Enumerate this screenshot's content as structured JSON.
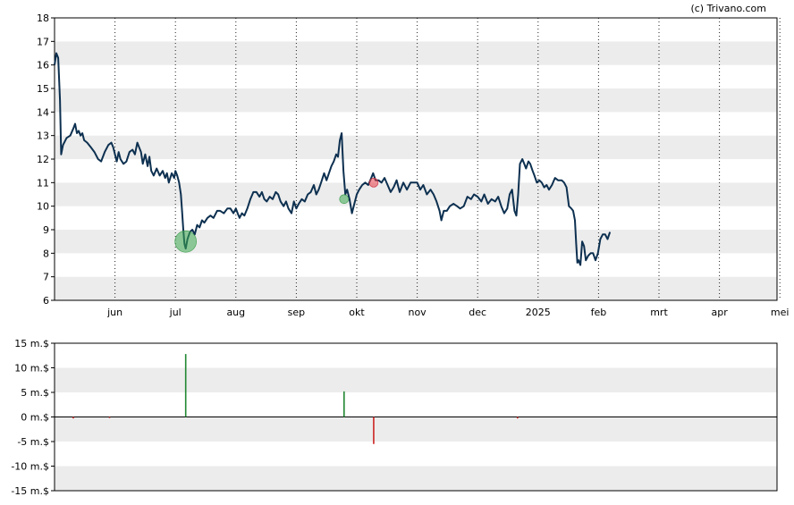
{
  "credit": "(c) Trivano.com",
  "chart_data": [
    {
      "type": "line",
      "title": "",
      "xlabel": "",
      "ylabel": "",
      "ylim": [
        6,
        18
      ],
      "y_ticks": [
        "6",
        "7",
        "8",
        "9",
        "10",
        "11",
        "12",
        "13",
        "14",
        "15",
        "16",
        "17",
        "18"
      ],
      "x_ticks": [
        {
          "label": "jun",
          "month": 1
        },
        {
          "label": "jul",
          "month": 2
        },
        {
          "label": "aug",
          "month": 3
        },
        {
          "label": "sep",
          "month": 4
        },
        {
          "label": "okt",
          "month": 5
        },
        {
          "label": "nov",
          "month": 6
        },
        {
          "label": "dec",
          "month": 7
        },
        {
          "label": "2025",
          "month": 8
        },
        {
          "label": "feb",
          "month": 9
        },
        {
          "label": "mrt",
          "month": 10
        },
        {
          "label": "apr",
          "month": 11
        },
        {
          "label": "mei",
          "month": 12
        }
      ],
      "grid": "alternating horizontal bands, dotted vertical month lines",
      "line_color": "#0d3050",
      "series": [
        {
          "points": [
            [
              0.0,
              16.0
            ],
            [
              0.03,
              16.5
            ],
            [
              0.06,
              16.3
            ],
            [
              0.09,
              14.5
            ],
            [
              0.11,
              12.2
            ],
            [
              0.14,
              12.6
            ],
            [
              0.2,
              12.9
            ],
            [
              0.26,
              13.0
            ],
            [
              0.31,
              13.3
            ],
            [
              0.34,
              13.5
            ],
            [
              0.37,
              13.1
            ],
            [
              0.4,
              13.2
            ],
            [
              0.43,
              13.0
            ],
            [
              0.46,
              13.1
            ],
            [
              0.49,
              12.8
            ],
            [
              0.54,
              12.7
            ],
            [
              0.6,
              12.5
            ],
            [
              0.66,
              12.3
            ],
            [
              0.72,
              12.0
            ],
            [
              0.77,
              11.9
            ],
            [
              0.83,
              12.3
            ],
            [
              0.89,
              12.6
            ],
            [
              0.94,
              12.7
            ],
            [
              0.97,
              12.5
            ],
            [
              1.0,
              12.2
            ],
            [
              1.03,
              11.9
            ],
            [
              1.06,
              12.3
            ],
            [
              1.09,
              12.0
            ],
            [
              1.14,
              11.8
            ],
            [
              1.19,
              11.9
            ],
            [
              1.24,
              12.3
            ],
            [
              1.29,
              12.4
            ],
            [
              1.33,
              12.2
            ],
            [
              1.37,
              12.7
            ],
            [
              1.4,
              12.5
            ],
            [
              1.43,
              12.3
            ],
            [
              1.46,
              11.8
            ],
            [
              1.5,
              12.2
            ],
            [
              1.54,
              11.7
            ],
            [
              1.57,
              12.1
            ],
            [
              1.6,
              11.5
            ],
            [
              1.64,
              11.3
            ],
            [
              1.69,
              11.6
            ],
            [
              1.74,
              11.3
            ],
            [
              1.79,
              11.5
            ],
            [
              1.83,
              11.2
            ],
            [
              1.86,
              11.4
            ],
            [
              1.89,
              11.0
            ],
            [
              1.94,
              11.4
            ],
            [
              1.98,
              11.2
            ],
            [
              2.0,
              11.5
            ],
            [
              2.03,
              11.3
            ],
            [
              2.06,
              11.0
            ],
            [
              2.09,
              10.5
            ],
            [
              2.11,
              9.8
            ],
            [
              2.13,
              9.0
            ],
            [
              2.15,
              8.4
            ],
            [
              2.17,
              8.2
            ],
            [
              2.2,
              8.6
            ],
            [
              2.24,
              8.9
            ],
            [
              2.28,
              9.0
            ],
            [
              2.32,
              8.8
            ],
            [
              2.36,
              9.2
            ],
            [
              2.4,
              9.1
            ],
            [
              2.44,
              9.4
            ],
            [
              2.48,
              9.3
            ],
            [
              2.53,
              9.5
            ],
            [
              2.58,
              9.6
            ],
            [
              2.63,
              9.5
            ],
            [
              2.69,
              9.8
            ],
            [
              2.74,
              9.8
            ],
            [
              2.8,
              9.7
            ],
            [
              2.86,
              9.9
            ],
            [
              2.91,
              9.9
            ],
            [
              2.96,
              9.7
            ],
            [
              3.0,
              9.9
            ],
            [
              3.03,
              9.7
            ],
            [
              3.06,
              9.5
            ],
            [
              3.1,
              9.7
            ],
            [
              3.14,
              9.6
            ],
            [
              3.19,
              9.9
            ],
            [
              3.24,
              10.3
            ],
            [
              3.29,
              10.6
            ],
            [
              3.34,
              10.6
            ],
            [
              3.39,
              10.4
            ],
            [
              3.43,
              10.6
            ],
            [
              3.47,
              10.3
            ],
            [
              3.51,
              10.2
            ],
            [
              3.56,
              10.4
            ],
            [
              3.61,
              10.3
            ],
            [
              3.66,
              10.6
            ],
            [
              3.7,
              10.5
            ],
            [
              3.74,
              10.2
            ],
            [
              3.79,
              10.0
            ],
            [
              3.83,
              10.2
            ],
            [
              3.87,
              9.9
            ],
            [
              3.92,
              9.7
            ],
            [
              3.96,
              10.2
            ],
            [
              4.0,
              9.9
            ],
            [
              4.04,
              10.1
            ],
            [
              4.09,
              10.3
            ],
            [
              4.14,
              10.2
            ],
            [
              4.19,
              10.5
            ],
            [
              4.24,
              10.6
            ],
            [
              4.29,
              10.9
            ],
            [
              4.33,
              10.5
            ],
            [
              4.37,
              10.7
            ],
            [
              4.41,
              11.0
            ],
            [
              4.46,
              11.4
            ],
            [
              4.5,
              11.1
            ],
            [
              4.54,
              11.4
            ],
            [
              4.58,
              11.7
            ],
            [
              4.62,
              11.9
            ],
            [
              4.66,
              12.2
            ],
            [
              4.69,
              12.1
            ],
            [
              4.72,
              12.8
            ],
            [
              4.75,
              13.1
            ],
            [
              4.78,
              11.5
            ],
            [
              4.81,
              10.5
            ],
            [
              4.84,
              10.7
            ],
            [
              4.88,
              10.3
            ],
            [
              4.92,
              9.7
            ],
            [
              4.96,
              10.1
            ],
            [
              5.0,
              10.5
            ],
            [
              5.04,
              10.7
            ],
            [
              5.09,
              10.9
            ],
            [
              5.14,
              11.0
            ],
            [
              5.19,
              10.9
            ],
            [
              5.24,
              11.2
            ],
            [
              5.27,
              11.4
            ],
            [
              5.31,
              11.1
            ],
            [
              5.36,
              11.1
            ],
            [
              5.41,
              11.0
            ],
            [
              5.46,
              11.2
            ],
            [
              5.51,
              10.9
            ],
            [
              5.56,
              10.6
            ],
            [
              5.61,
              10.8
            ],
            [
              5.66,
              11.1
            ],
            [
              5.71,
              10.6
            ],
            [
              5.77,
              11.0
            ],
            [
              5.83,
              10.7
            ],
            [
              5.89,
              11.0
            ],
            [
              5.94,
              11.0
            ],
            [
              6.0,
              11.0
            ],
            [
              6.05,
              10.7
            ],
            [
              6.1,
              10.9
            ],
            [
              6.16,
              10.5
            ],
            [
              6.22,
              10.7
            ],
            [
              6.27,
              10.5
            ],
            [
              6.32,
              10.2
            ],
            [
              6.37,
              9.8
            ],
            [
              6.4,
              9.4
            ],
            [
              6.44,
              9.8
            ],
            [
              6.49,
              9.8
            ],
            [
              6.54,
              10.0
            ],
            [
              6.6,
              10.1
            ],
            [
              6.66,
              10.0
            ],
            [
              6.71,
              9.9
            ],
            [
              6.77,
              10.0
            ],
            [
              6.83,
              10.4
            ],
            [
              6.89,
              10.3
            ],
            [
              6.94,
              10.5
            ],
            [
              7.0,
              10.4
            ],
            [
              7.06,
              10.2
            ],
            [
              7.11,
              10.5
            ],
            [
              7.17,
              10.1
            ],
            [
              7.23,
              10.3
            ],
            [
              7.29,
              10.2
            ],
            [
              7.34,
              10.4
            ],
            [
              7.39,
              10.0
            ],
            [
              7.44,
              9.7
            ],
            [
              7.49,
              9.9
            ],
            [
              7.53,
              10.5
            ],
            [
              7.57,
              10.7
            ],
            [
              7.61,
              9.8
            ],
            [
              7.64,
              9.6
            ],
            [
              7.67,
              10.5
            ],
            [
              7.7,
              11.8
            ],
            [
              7.74,
              12.0
            ],
            [
              7.77,
              11.8
            ],
            [
              7.8,
              11.6
            ],
            [
              7.84,
              11.9
            ],
            [
              7.87,
              11.8
            ],
            [
              7.91,
              11.5
            ],
            [
              7.94,
              11.3
            ],
            [
              7.98,
              11.0
            ],
            [
              8.02,
              11.1
            ],
            [
              8.06,
              11.0
            ],
            [
              8.1,
              10.8
            ],
            [
              8.14,
              10.9
            ],
            [
              8.18,
              10.7
            ],
            [
              8.23,
              10.9
            ],
            [
              8.28,
              11.2
            ],
            [
              8.33,
              11.1
            ],
            [
              8.39,
              11.1
            ],
            [
              8.43,
              11.0
            ],
            [
              8.47,
              10.8
            ],
            [
              8.51,
              10.0
            ],
            [
              8.55,
              9.9
            ],
            [
              8.58,
              9.8
            ],
            [
              8.61,
              9.4
            ],
            [
              8.63,
              8.4
            ],
            [
              8.65,
              7.6
            ],
            [
              8.67,
              7.7
            ],
            [
              8.7,
              7.5
            ],
            [
              8.73,
              8.5
            ],
            [
              8.76,
              8.3
            ],
            [
              8.79,
              7.7
            ],
            [
              8.83,
              7.9
            ],
            [
              8.87,
              8.0
            ],
            [
              8.91,
              8.0
            ],
            [
              8.95,
              7.7
            ],
            [
              8.99,
              8.0
            ],
            [
              9.03,
              8.6
            ],
            [
              9.07,
              8.8
            ],
            [
              9.11,
              8.8
            ],
            [
              9.15,
              8.6
            ],
            [
              9.19,
              8.9
            ]
          ]
        }
      ],
      "markers": [
        {
          "month": 2.17,
          "value": 8.5,
          "kind": "buy",
          "size": "large"
        },
        {
          "month": 4.79,
          "value": 10.3,
          "kind": "buy",
          "size": "small"
        },
        {
          "month": 5.28,
          "value": 11.0,
          "kind": "sell",
          "size": "small"
        }
      ]
    },
    {
      "type": "bar",
      "title": "",
      "xlabel": "",
      "ylabel": "",
      "ylim": [
        -15,
        15
      ],
      "y_ticks": [
        "15 m.$",
        "10 m.$",
        "5 m.$",
        "0 m.$",
        "-5 m.$",
        "-10 m.$",
        "-15 m.$"
      ],
      "grid": "alternating horizontal bands",
      "bars": [
        {
          "month": 0.31,
          "value": -0.3,
          "color": "#cc2222"
        },
        {
          "month": 0.91,
          "value": -0.2,
          "color": "#cc2222"
        },
        {
          "month": 2.17,
          "value": 12.8,
          "color": "#228833"
        },
        {
          "month": 4.79,
          "value": 5.2,
          "color": "#228833"
        },
        {
          "month": 5.28,
          "value": -5.5,
          "color": "#cc2222"
        },
        {
          "month": 7.66,
          "value": -0.3,
          "color": "#cc2222"
        }
      ]
    }
  ]
}
